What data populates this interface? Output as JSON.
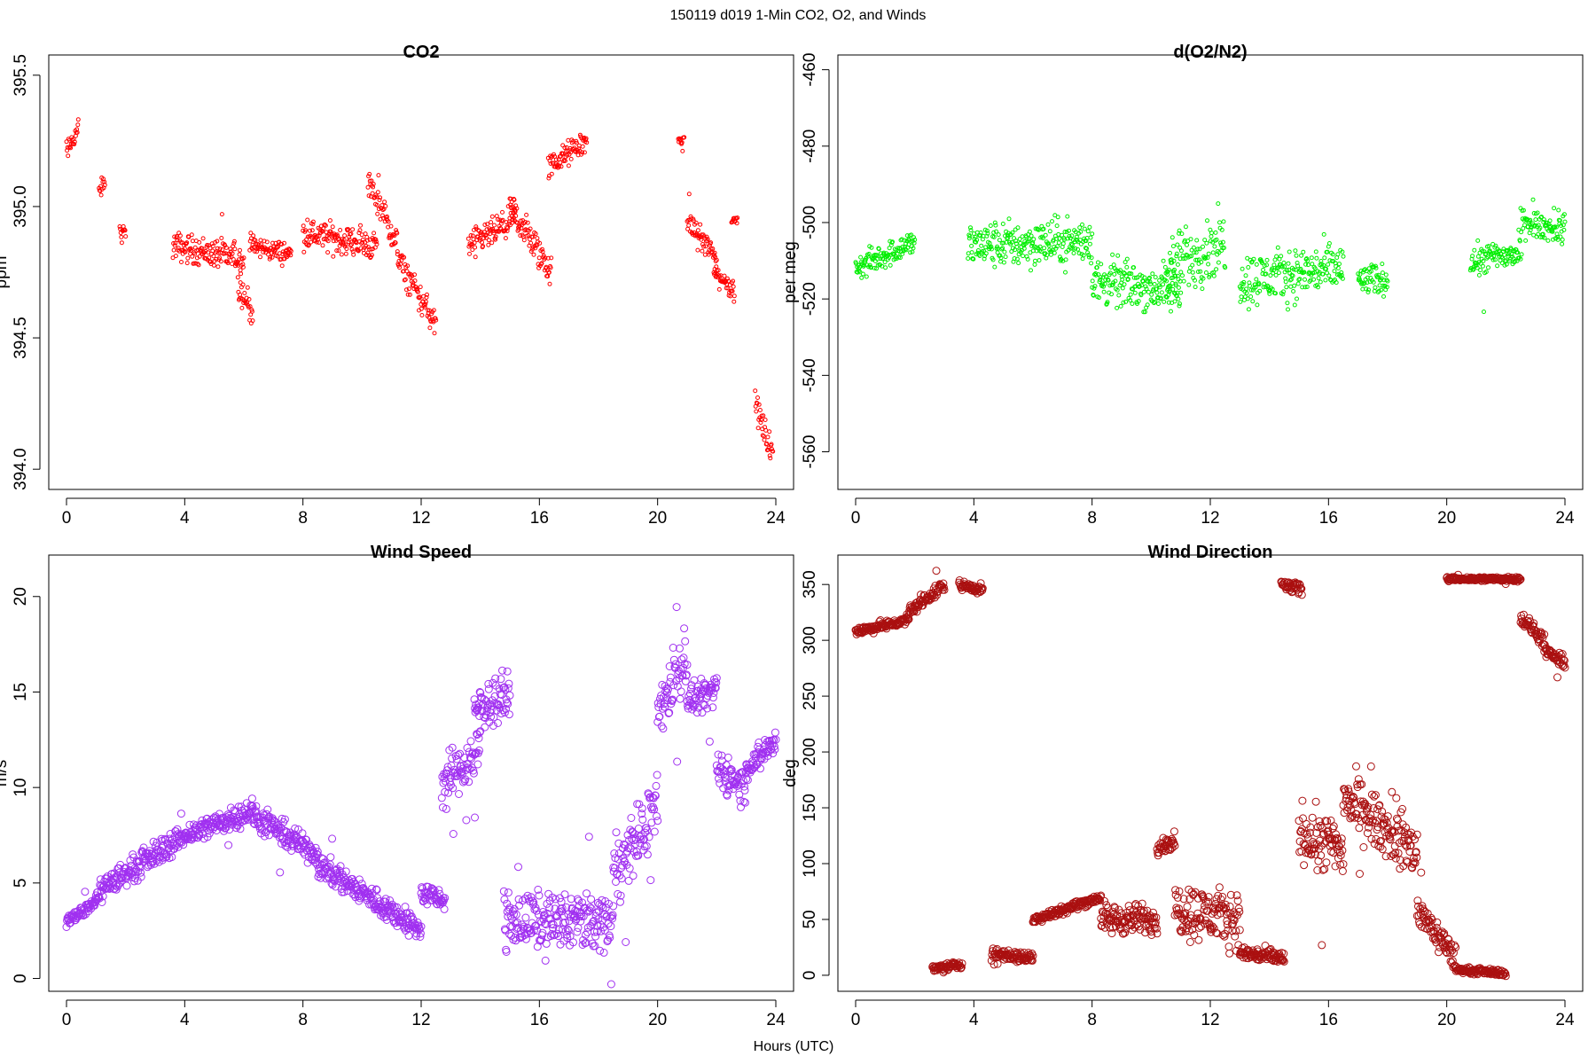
{
  "figure": {
    "suptitle": "150119   d019   1-Min CO2, O2, and Winds",
    "xlabel": "Hours (UTC)"
  },
  "chart_data": [
    {
      "type": "scatter",
      "title": "CO2",
      "xlabel": "",
      "ylabel": "ppm",
      "xlim": [
        0,
        24
      ],
      "ylim": [
        393.95,
        395.55
      ],
      "xticks": [
        0,
        4,
        8,
        12,
        16,
        20,
        24
      ],
      "yticks": [
        394.0,
        394.5,
        395.0,
        395.5
      ],
      "ytick_labels": [
        "394.0",
        "394.5",
        "395.0",
        "395.5"
      ],
      "y_labels_rotated": true,
      "color": "#ff0000",
      "marker_radius": 2,
      "grid": false,
      "segments": [
        {
          "x": [
            0.0,
            0.4
          ],
          "y": [
            395.2,
            395.3
          ],
          "noise": 0.06
        },
        {
          "x": [
            1.1,
            1.3
          ],
          "y": [
            395.05,
            395.1
          ],
          "noise": 0.05
        },
        {
          "x": [
            1.8,
            2.0
          ],
          "y": [
            394.9,
            394.9
          ],
          "noise": 0.05
        },
        {
          "x": [
            3.6,
            6.0
          ],
          "y": [
            394.85,
            394.8
          ],
          "noise": 0.08
        },
        {
          "x": [
            5.8,
            6.3
          ],
          "y": [
            394.7,
            394.6
          ],
          "noise": 0.08
        },
        {
          "x": [
            6.2,
            7.6
          ],
          "y": [
            394.85,
            394.82
          ],
          "noise": 0.06
        },
        {
          "x": [
            8.0,
            10.5
          ],
          "y": [
            394.9,
            394.85
          ],
          "noise": 0.08
        },
        {
          "x": [
            10.2,
            11.2
          ],
          "y": [
            395.1,
            394.85
          ],
          "noise": 0.08
        },
        {
          "x": [
            11.2,
            12.5
          ],
          "y": [
            394.8,
            394.55
          ],
          "noise": 0.08
        },
        {
          "x": [
            13.6,
            15.2
          ],
          "y": [
            394.85,
            394.95
          ],
          "noise": 0.08
        },
        {
          "x": [
            15.0,
            16.4
          ],
          "y": [
            395.0,
            394.75
          ],
          "noise": 0.1
        },
        {
          "x": [
            16.3,
            17.6
          ],
          "y": [
            395.15,
            395.25
          ],
          "noise": 0.07
        },
        {
          "x": [
            20.7,
            20.9
          ],
          "y": [
            395.25,
            395.25
          ],
          "noise": 0.02
        },
        {
          "x": [
            21.0,
            22.0
          ],
          "y": [
            394.95,
            394.8
          ],
          "noise": 0.07
        },
        {
          "x": [
            21.9,
            22.6
          ],
          "y": [
            394.75,
            394.68
          ],
          "noise": 0.06
        },
        {
          "x": [
            22.5,
            22.7
          ],
          "y": [
            394.95,
            394.95
          ],
          "noise": 0.02
        },
        {
          "x": [
            23.3,
            23.9
          ],
          "y": [
            394.25,
            394.05
          ],
          "noise": 0.08
        }
      ]
    },
    {
      "type": "scatter",
      "title": "d(O2/N2)",
      "xlabel": "",
      "ylabel": "per meg",
      "xlim": [
        0,
        24
      ],
      "ylim": [
        -568,
        -458
      ],
      "xticks": [
        0,
        4,
        8,
        12,
        16,
        20,
        24
      ],
      "yticks": [
        -460,
        -480,
        -500,
        -520,
        -540,
        -560
      ],
      "ytick_labels": [
        "-460",
        "-480",
        "-500",
        "-520",
        "-540",
        "-560"
      ],
      "y_labels_rotated": true,
      "color": "#00ee00",
      "marker_radius": 2,
      "grid": false,
      "segments": [
        {
          "x": [
            0.0,
            2.0
          ],
          "y": [
            -512,
            -505
          ],
          "noise": 5
        },
        {
          "x": [
            3.8,
            8.0
          ],
          "y": [
            -506,
            -505
          ],
          "noise": 9
        },
        {
          "x": [
            8.0,
            11.0
          ],
          "y": [
            -515,
            -518
          ],
          "noise": 9
        },
        {
          "x": [
            10.5,
            12.5
          ],
          "y": [
            -512,
            -505
          ],
          "noise": 12
        },
        {
          "x": [
            13.0,
            16.5
          ],
          "y": [
            -515,
            -512
          ],
          "noise": 10
        },
        {
          "x": [
            17.0,
            18.0
          ],
          "y": [
            -515,
            -515
          ],
          "noise": 6
        },
        {
          "x": [
            20.8,
            22.5
          ],
          "y": [
            -510,
            -508
          ],
          "noise": 6
        },
        {
          "x": [
            22.5,
            24.0
          ],
          "y": [
            -500,
            -502
          ],
          "noise": 5
        }
      ]
    },
    {
      "type": "scatter",
      "title": "Wind Speed",
      "xlabel": "",
      "ylabel": "m/s",
      "xlim": [
        0,
        24
      ],
      "ylim": [
        -0.3,
        21.8
      ],
      "xticks": [
        0,
        4,
        8,
        12,
        16,
        20,
        24
      ],
      "yticks": [
        0,
        5,
        10,
        15,
        20
      ],
      "ytick_labels": [
        "0",
        "5",
        "10",
        "15",
        "20"
      ],
      "y_labels_rotated": true,
      "color": "#a030f0",
      "marker_radius": 4,
      "grid": false,
      "segments": [
        {
          "x": [
            0.0,
            1.0
          ],
          "y": [
            3.0,
            4.0
          ],
          "noise": 0.5
        },
        {
          "x": [
            1.0,
            4.0
          ],
          "y": [
            4.5,
            7.5
          ],
          "noise": 1.0
        },
        {
          "x": [
            4.0,
            6.3
          ],
          "y": [
            7.5,
            8.8
          ],
          "noise": 0.9
        },
        {
          "x": [
            6.3,
            8.5
          ],
          "y": [
            8.5,
            6.5
          ],
          "noise": 1.0
        },
        {
          "x": [
            8.5,
            10.5
          ],
          "y": [
            6.0,
            4.0
          ],
          "noise": 1.0
        },
        {
          "x": [
            10.5,
            12.0
          ],
          "y": [
            4.0,
            2.5
          ],
          "noise": 1.0
        },
        {
          "x": [
            12.0,
            12.8
          ],
          "y": [
            4.5,
            4.0
          ],
          "noise": 0.8
        },
        {
          "x": [
            12.7,
            14.0
          ],
          "y": [
            10.0,
            12.0
          ],
          "noise": 2.0
        },
        {
          "x": [
            13.8,
            15.0
          ],
          "y": [
            14.0,
            15.0
          ],
          "noise": 1.5
        },
        {
          "x": [
            14.8,
            18.5
          ],
          "y": [
            3.0,
            3.0
          ],
          "noise": 2.2
        },
        {
          "x": [
            18.5,
            20.0
          ],
          "y": [
            5.5,
            9.0
          ],
          "noise": 2.5
        },
        {
          "x": [
            20.0,
            21.0
          ],
          "y": [
            14.0,
            17.0
          ],
          "noise": 2.5
        },
        {
          "x": [
            21.0,
            22.0
          ],
          "y": [
            14.5,
            15.0
          ],
          "noise": 1.2
        },
        {
          "x": [
            22.0,
            23.0
          ],
          "y": [
            11.0,
            10.0
          ],
          "noise": 1.5
        },
        {
          "x": [
            23.0,
            24.0
          ],
          "y": [
            11.0,
            12.5
          ],
          "noise": 1.0
        }
      ]
    },
    {
      "type": "scatter",
      "title": "Wind Direction",
      "xlabel": "",
      "ylabel": "deg",
      "xlim": [
        0,
        24
      ],
      "ylim": [
        -8,
        370
      ],
      "xticks": [
        0,
        4,
        8,
        12,
        16,
        20,
        24
      ],
      "yticks": [
        0,
        50,
        100,
        150,
        200,
        250,
        300,
        350
      ],
      "ytick_labels": [
        "0",
        "50",
        "100",
        "150",
        "200",
        "250",
        "300",
        "350"
      ],
      "y_labels_rotated": false,
      "color": "#aa1010",
      "marker_radius": 4,
      "grid": false,
      "segments": [
        {
          "x": [
            0.0,
            1.8
          ],
          "y": [
            308,
            318
          ],
          "noise": 6
        },
        {
          "x": [
            1.8,
            3.0
          ],
          "y": [
            325,
            350
          ],
          "noise": 8
        },
        {
          "x": [
            3.5,
            4.3
          ],
          "y": [
            350,
            345
          ],
          "noise": 6
        },
        {
          "x": [
            2.6,
            3.6
          ],
          "y": [
            5,
            10
          ],
          "noise": 6
        },
        {
          "x": [
            4.6,
            6.0
          ],
          "y": [
            20,
            15
          ],
          "noise": 8
        },
        {
          "x": [
            6.0,
            8.3
          ],
          "y": [
            50,
            70
          ],
          "noise": 6
        },
        {
          "x": [
            8.3,
            10.2
          ],
          "y": [
            50,
            50
          ],
          "noise": 20
        },
        {
          "x": [
            10.2,
            10.8
          ],
          "y": [
            115,
            120
          ],
          "noise": 10
        },
        {
          "x": [
            10.8,
            13.0
          ],
          "y": [
            60,
            50
          ],
          "noise": 35
        },
        {
          "x": [
            13.0,
            14.5
          ],
          "y": [
            20,
            15
          ],
          "noise": 10
        },
        {
          "x": [
            14.4,
            15.1
          ],
          "y": [
            350,
            345
          ],
          "noise": 8
        },
        {
          "x": [
            15.0,
            16.5
          ],
          "y": [
            130,
            110
          ],
          "noise": 40
        },
        {
          "x": [
            16.5,
            19.0
          ],
          "y": [
            160,
            110
          ],
          "noise": 35
        },
        {
          "x": [
            19.0,
            20.3
          ],
          "y": [
            60,
            15
          ],
          "noise": 20
        },
        {
          "x": [
            20.3,
            22.0
          ],
          "y": [
            5,
            2
          ],
          "noise": 4
        },
        {
          "x": [
            20.0,
            22.5
          ],
          "y": [
            355,
            355
          ],
          "noise": 3
        },
        {
          "x": [
            22.5,
            23.3
          ],
          "y": [
            320,
            300
          ],
          "noise": 10
        },
        {
          "x": [
            23.3,
            24.0
          ],
          "y": [
            290,
            280
          ],
          "noise": 8
        }
      ]
    }
  ]
}
